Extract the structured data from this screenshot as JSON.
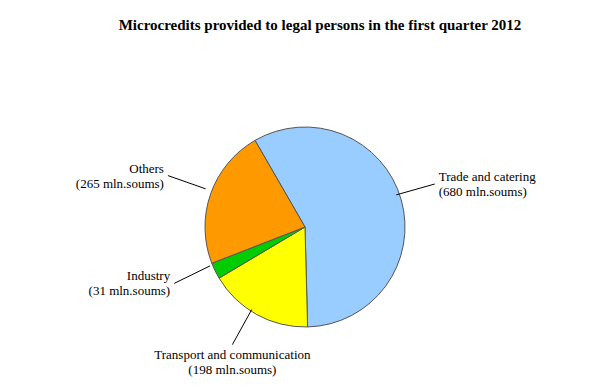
{
  "chart_data": {
    "type": "pie",
    "title": "Microcredits provided to legal persons in the first quarter 2012",
    "categories": [
      "Trade and catering",
      "Transport and communication",
      "Industry",
      "Others"
    ],
    "values": [
      680,
      198,
      31,
      265
    ],
    "value_labels": [
      "(680 mln.soums)",
      "(198 mln.soums)",
      "(31 mln.soums)",
      "(265 mln.soums)"
    ],
    "colors": [
      "#99ccff",
      "#ffff00",
      "#00cc00",
      "#ff9900"
    ],
    "data_labels": true
  }
}
